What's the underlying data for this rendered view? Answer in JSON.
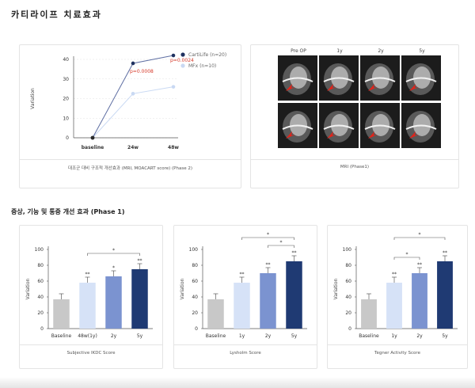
{
  "page": {
    "title": "카티라이프 치료효과",
    "section_title": "증상, 기능 및 통증 개선 효과 (Phase 1)"
  },
  "colors": {
    "cartilife": "#1f3160",
    "mfx": "#c9d9f3",
    "baseline_bar": "#c8c8c8",
    "bar_light": "#d6e2f7",
    "bar_mid": "#7b93d0",
    "bar_dark": "#1f3a73",
    "pvalue_red": "#d63a2a"
  },
  "mri": {
    "caption": "MRI (Phase1)",
    "column_labels": [
      "Pre OP",
      "1y",
      "2y",
      "5y"
    ]
  },
  "chart_data": [
    {
      "type": "line",
      "caption": "대조군 대비 구조적 개선효과 (MRI, MOACART score) (Phase 2)",
      "categories": [
        "baseline",
        "24w",
        "48w"
      ],
      "ylabel": "Variation",
      "ylim": [
        0,
        40
      ],
      "yticks": [
        0,
        10,
        20,
        30,
        40
      ],
      "grid": true,
      "legend_position": "top-right",
      "series": [
        {
          "name": "CartiLife (n=20)",
          "values": [
            0,
            38,
            42
          ]
        },
        {
          "name": "MFx (n=10)",
          "values": [
            0,
            22.5,
            26
          ]
        }
      ],
      "annotations": [
        "p=0.0008",
        "p=0.0024"
      ]
    },
    {
      "type": "bar",
      "caption": "Subjective IKDC Score",
      "categories": [
        "Baseline",
        "48w(1y)",
        "2y",
        "5y"
      ],
      "values": [
        37,
        58,
        66,
        75
      ],
      "errors": [
        7,
        7,
        7,
        7
      ],
      "ylabel": "Variation",
      "ylim": [
        0,
        100
      ],
      "yticks": [
        0,
        20,
        40,
        60,
        80,
        100
      ],
      "bar_markers": [
        "",
        "**",
        "*",
        "**"
      ],
      "brackets": [
        {
          "from": 1,
          "to": 3,
          "label": "*"
        }
      ]
    },
    {
      "type": "bar",
      "caption": "Lysholm Score",
      "categories": [
        "Baseline",
        "1y",
        "2y",
        "5y"
      ],
      "values": [
        37,
        58,
        70,
        85
      ],
      "errors": [
        7,
        7,
        7,
        7
      ],
      "ylabel": "Variation",
      "ylim": [
        0,
        100
      ],
      "yticks": [
        0,
        20,
        40,
        60,
        80,
        100
      ],
      "bar_markers": [
        "",
        "**",
        "**",
        "**"
      ],
      "brackets": [
        {
          "from": 2,
          "to": 3,
          "label": "*"
        },
        {
          "from": 1,
          "to": 3,
          "label": "*"
        }
      ]
    },
    {
      "type": "bar",
      "caption": "Tegner Activity Score",
      "categories": [
        "Baseline",
        "1y",
        "2y",
        "5y"
      ],
      "values": [
        37,
        58,
        70,
        85
      ],
      "errors": [
        7,
        7,
        7,
        7
      ],
      "ylabel": "Variation",
      "ylim": [
        0,
        100
      ],
      "yticks": [
        0,
        20,
        40,
        60,
        80,
        100
      ],
      "bar_markers": [
        "",
        "**",
        "**",
        "**"
      ],
      "brackets": [
        {
          "from": 1,
          "to": 2,
          "label": "*"
        },
        {
          "from": 1,
          "to": 3,
          "label": "*"
        }
      ]
    }
  ]
}
